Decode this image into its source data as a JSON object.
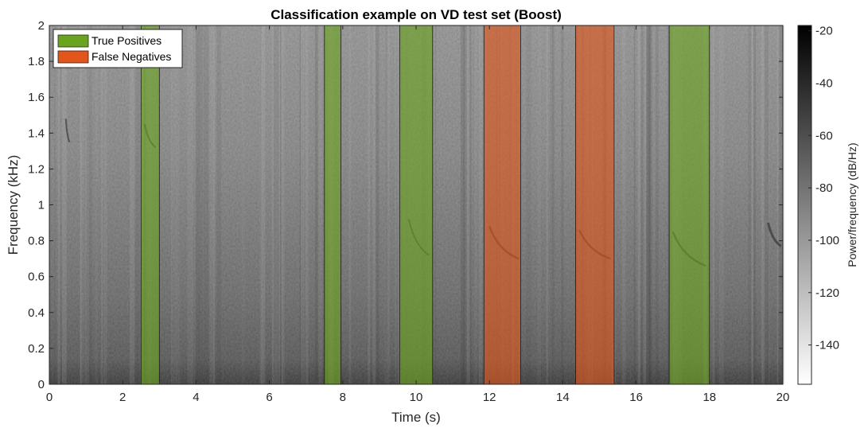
{
  "chart_data": {
    "type": "heatmap",
    "title": "Classification example on VD test set (Boost)",
    "xlabel": "Time (s)",
    "ylabel": "Frequency (kHz)",
    "xlim": [
      0,
      20
    ],
    "ylim": [
      0,
      2
    ],
    "x_ticks": [
      "0",
      "2",
      "4",
      "6",
      "8",
      "10",
      "12",
      "14",
      "16",
      "18",
      "20"
    ],
    "y_ticks": [
      "0",
      "0.2",
      "0.4",
      "0.6",
      "0.8",
      "1",
      "1.2",
      "1.4",
      "1.6",
      "1.8",
      "2"
    ],
    "colorbar": {
      "label": "Power/frequency (dB/Hz)",
      "range": [
        -155,
        -18
      ],
      "ticks": [
        "-20",
        "-40",
        "-60",
        "-80",
        "-100",
        "-120",
        "-140"
      ],
      "tick_values": [
        -20,
        -40,
        -60,
        -80,
        -100,
        -120,
        -140
      ],
      "colormap": "gray (reversed: black = high power)"
    },
    "grid": false,
    "legend_position": "top-left",
    "series": [
      {
        "name": "True Positives",
        "color": "#6aa41e",
        "intervals": [
          [
            2.5,
            3.0
          ],
          [
            7.5,
            7.95
          ],
          [
            9.55,
            10.45
          ],
          [
            16.9,
            18.0
          ]
        ]
      },
      {
        "name": "False Negatives",
        "color": "#e2561c",
        "intervals": [
          [
            11.85,
            12.85
          ],
          [
            14.35,
            15.4
          ]
        ]
      }
    ]
  }
}
